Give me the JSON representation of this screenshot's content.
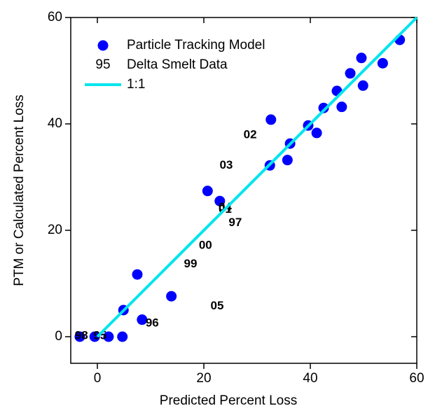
{
  "chart_data": {
    "type": "scatter",
    "x_label": "Predicted Percent Loss",
    "y_label": "PTM or Calculated Percent Loss",
    "xlim": [
      -5,
      60
    ],
    "ylim": [
      -5,
      60
    ],
    "xticks": [
      0,
      20,
      40,
      60
    ],
    "yticks": [
      0,
      20,
      40,
      60
    ],
    "legend": "upper left",
    "series": [
      {
        "name": "Particle Tracking Model",
        "color": "#0000ff",
        "x": [
          -3.3,
          -0.5,
          2.1,
          4.9,
          4.7,
          7.5,
          8.4,
          13.9,
          20.7,
          23,
          32.4,
          32.6,
          35.7,
          36.2,
          39.6,
          41.2,
          42.5,
          45,
          45.9,
          47.5,
          49.6,
          49.9,
          53.6,
          56.8
        ],
        "values": [
          0,
          0,
          0,
          5,
          0,
          11.7,
          3.2,
          7.6,
          27.4,
          25.5,
          32.2,
          40.8,
          33.2,
          36.3,
          39.7,
          38.3,
          43,
          46.2,
          43.2,
          49.5,
          52.4,
          47.2,
          51.4,
          55.8
        ]
      },
      {
        "name": "Delta Smelt Data",
        "color": "#ff0000",
        "marker_text": "95",
        "labels": [
          "02",
          "03",
          "04",
          "01",
          "97",
          "00",
          "99",
          "05",
          "96",
          "98",
          "95"
        ],
        "x": [
          28.7,
          24.2,
          24,
          24,
          25.9,
          20.3,
          17.5,
          22.5,
          10.3,
          -3,
          0.5
        ],
        "values": [
          37.9,
          32.2,
          24.3,
          23.9,
          21.4,
          17.1,
          13.6,
          5.7,
          2.5,
          0.1,
          0.1
        ]
      },
      {
        "name": "1:1",
        "color": "#00e5ee",
        "line": true,
        "x": [
          0,
          60
        ],
        "values": [
          0,
          60
        ]
      }
    ]
  }
}
